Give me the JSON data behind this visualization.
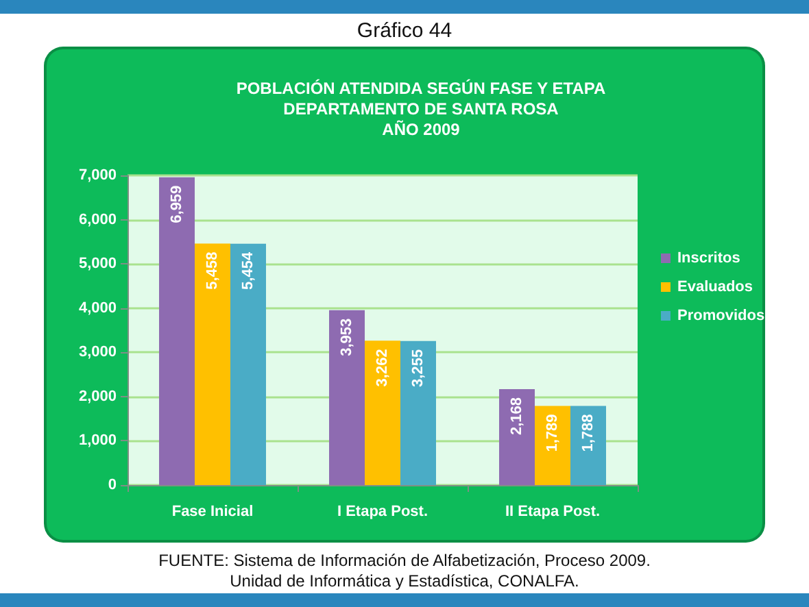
{
  "chart_data": {
    "type": "bar",
    "title": "Gráfico 44",
    "subtitle": "POBLACIÓN ATENDIDA SEGÚN FASE Y ETAPA\nDEPARTAMENTO DE SANTA ROSA\nAÑO 2009",
    "categories": [
      "Fase Inicial",
      "I Etapa Post.",
      "II Etapa Post."
    ],
    "series": [
      {
        "name": "Inscritos",
        "color": "#8e6bb1",
        "values": [
          6959,
          3953,
          2168
        ],
        "value_labels": [
          "6,959",
          "3,953",
          "2,168"
        ]
      },
      {
        "name": "Evaluados",
        "color": "#ffc000",
        "values": [
          5458,
          3262,
          1789
        ],
        "value_labels": [
          "5,458",
          "3,262",
          "1,789"
        ]
      },
      {
        "name": "Promovidos",
        "color": "#4aacc6",
        "values": [
          5454,
          3255,
          1788
        ],
        "value_labels": [
          "5,454",
          "3,255",
          "1,788"
        ]
      }
    ],
    "ylim": [
      0,
      7000
    ],
    "yticks": [
      0,
      {
        "value": 1000,
        "label": "1,000"
      },
      {
        "value": 2000,
        "label": "2,000"
      },
      {
        "value": 3000,
        "label": "3,000"
      },
      {
        "value": 4000,
        "label": "4,000"
      },
      {
        "value": 5000,
        "label": "5,000"
      },
      {
        "value": 6000,
        "label": "6,000"
      },
      {
        "value": 7000,
        "label": "7,000"
      }
    ],
    "grid": "y",
    "legend": "right",
    "annotations": [
      "FUENTE: Sistema de Información de Alfabetización, Proceso 2009.",
      "Unidad de Informática y Estadística, CONALFA."
    ]
  }
}
